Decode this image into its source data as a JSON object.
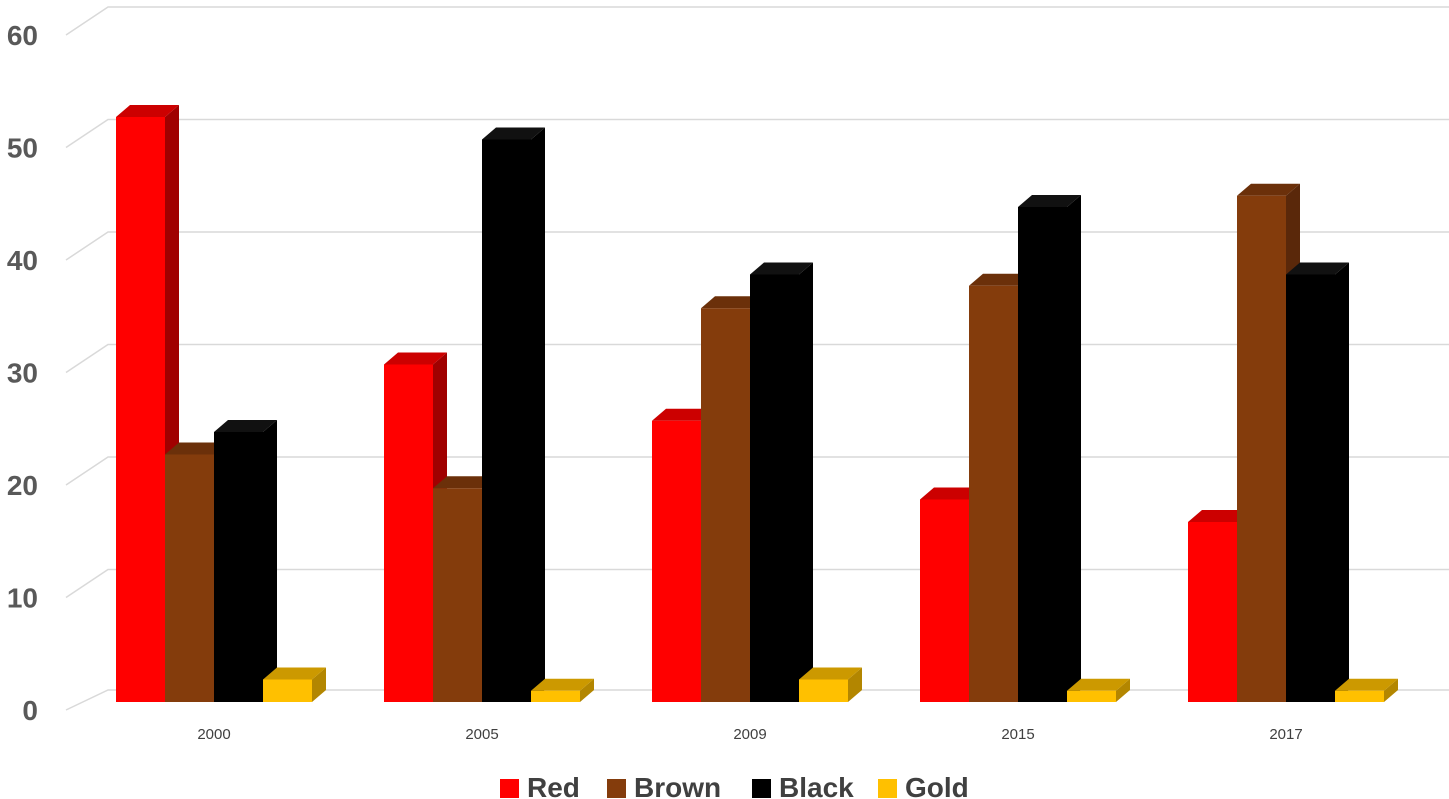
{
  "chart_data": {
    "type": "bar",
    "style": "3d-clustered-column",
    "categories": [
      "2000",
      "2005",
      "2009",
      "2015",
      "2017"
    ],
    "series": [
      {
        "name": "Red",
        "color": "#ff0000",
        "side_color": "#a00000",
        "top_color": "#cc0000",
        "values": [
          52,
          30,
          25,
          18,
          16
        ]
      },
      {
        "name": "Brown",
        "color": "#843c0c",
        "side_color": "#5a280a",
        "top_color": "#6b300a",
        "values": [
          22,
          19,
          35,
          37,
          45
        ]
      },
      {
        "name": "Black",
        "color": "#000000",
        "side_color": "#000000",
        "top_color": "#111111",
        "values": [
          24,
          50,
          38,
          44,
          38
        ]
      },
      {
        "name": "Gold",
        "color": "#ffc000",
        "side_color": "#b38600",
        "top_color": "#cc9900",
        "values": [
          2,
          1,
          2,
          1,
          1
        ]
      }
    ],
    "ylim": [
      0,
      60
    ],
    "yticks": [
      0,
      10,
      20,
      30,
      40,
      50,
      60
    ],
    "grid": true,
    "legend_position": "bottom"
  }
}
